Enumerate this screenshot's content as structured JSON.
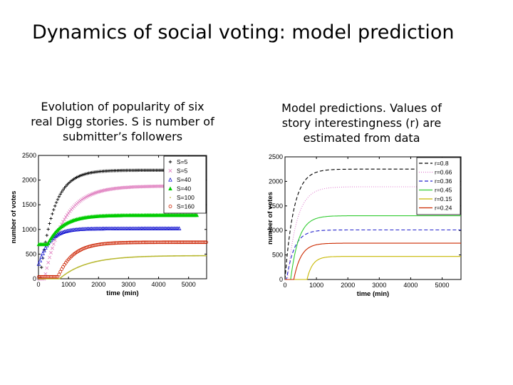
{
  "slide": {
    "title": "Dynamics of social voting: model prediction",
    "left_caption": "Evolution of popularity of six real Digg stories. S is number of submitter’s followers",
    "right_caption": "Model predictions. Values of story interestingness (r) are estimated from data"
  },
  "chart_data": [
    {
      "type": "scatter",
      "xlabel": "time (min)",
      "ylabel": "number of votes",
      "xlim": [
        0,
        5600
      ],
      "ylim": [
        0,
        2500
      ],
      "xticks": [
        0,
        1000,
        2000,
        3000,
        4000,
        5000
      ],
      "yticks": [
        0,
        500,
        1000,
        1500,
        2000,
        2500
      ],
      "legend_position": "top-right",
      "series": [
        {
          "name": "S=5",
          "marker": "+",
          "color": "#000000",
          "xmax": 4700,
          "plateau": 2200,
          "delay": 50,
          "tau": 450,
          "start": 0
        },
        {
          "name": "S=5",
          "marker": "x",
          "color": "#e080c0",
          "xmax": 5300,
          "plateau": 1880,
          "delay": 200,
          "tau": 650,
          "start": 0
        },
        {
          "name": "S=40",
          "marker": "triangle",
          "color": "#0000cc",
          "xmax": 4700,
          "plateau": 1020,
          "delay": 20,
          "tau": 350,
          "start": 300
        },
        {
          "name": "S=40",
          "marker": "triangle-filled",
          "color": "#00cc00",
          "xmax": 5300,
          "plateau": 1290,
          "delay": 300,
          "tau": 500,
          "start": 700
        },
        {
          "name": "S=100",
          "marker": "dot",
          "color": "#b8b830",
          "xmax": 5600,
          "plateau": 470,
          "delay": 700,
          "tau": 900,
          "start": 0
        },
        {
          "name": "S=160",
          "marker": "o",
          "color": "#cc2200",
          "xmax": 5600,
          "plateau": 740,
          "delay": 650,
          "tau": 500,
          "start": 40
        }
      ]
    },
    {
      "type": "line",
      "xlabel": "time (min)",
      "ylabel": "number of votes",
      "xlim": [
        0,
        5600
      ],
      "ylim": [
        0,
        2500
      ],
      "xticks": [
        0,
        1000,
        2000,
        3000,
        4000,
        5000
      ],
      "yticks": [
        0,
        500,
        1000,
        1500,
        2000,
        2500
      ],
      "legend_position": "top-right",
      "series": [
        {
          "name": "r=0.8",
          "style": "dashed",
          "color": "#000000",
          "plateau": 2250,
          "delay": 0,
          "tau": 280
        },
        {
          "name": "r=0.66",
          "style": "dotted",
          "color": "#e080d0",
          "plateau": 1890,
          "delay": 80,
          "tau": 300
        },
        {
          "name": "r=0.36",
          "style": "dashed",
          "color": "#2222cc",
          "plateau": 1010,
          "delay": 50,
          "tau": 250
        },
        {
          "name": "r=0.45",
          "style": "solid",
          "color": "#33cc33",
          "plateau": 1300,
          "delay": 180,
          "tau": 260
        },
        {
          "name": "r=0.15",
          "style": "solid",
          "color": "#c8b800",
          "plateau": 470,
          "delay": 700,
          "tau": 180
        },
        {
          "name": "r=0.24",
          "style": "solid",
          "color": "#cc2a00",
          "plateau": 740,
          "delay": 280,
          "tau": 230
        }
      ]
    }
  ]
}
